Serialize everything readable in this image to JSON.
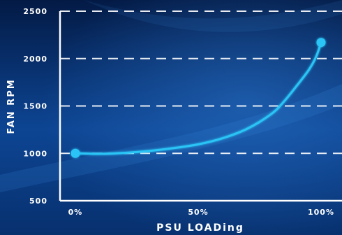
{
  "chart_data": {
    "type": "line",
    "title": "",
    "xlabel": "PSU LOADing",
    "ylabel": "FAN RPM",
    "x_tick_labels": [
      "0%",
      "50%",
      "100%"
    ],
    "y_ticks": [
      500,
      1000,
      1500,
      2000,
      2500
    ],
    "y_tick_labels": [
      "500",
      "1000",
      "1500",
      "2000",
      "2500"
    ],
    "xlim": [
      0,
      100
    ],
    "ylim": [
      500,
      2500
    ],
    "grid": "horizontal dashed",
    "legend": "none",
    "series": [
      {
        "color": "#29c5f6",
        "x": [
          0,
          10,
          20,
          30,
          40,
          50,
          60,
          70,
          80,
          85,
          90,
          95,
          98,
          100
        ],
        "y": [
          1000,
          995,
          1005,
          1025,
          1055,
          1095,
          1160,
          1260,
          1420,
          1550,
          1710,
          1880,
          2020,
          2170
        ]
      }
    ],
    "markers": [
      {
        "x": 0,
        "y": 1000
      },
      {
        "x": 100,
        "y": 2170
      }
    ]
  },
  "colors": {
    "bg_dark": "#031a45",
    "bg_light": "#0e4a96",
    "line": "#29c5f6",
    "axis": "#ffffff",
    "grid": "#ffffff"
  }
}
